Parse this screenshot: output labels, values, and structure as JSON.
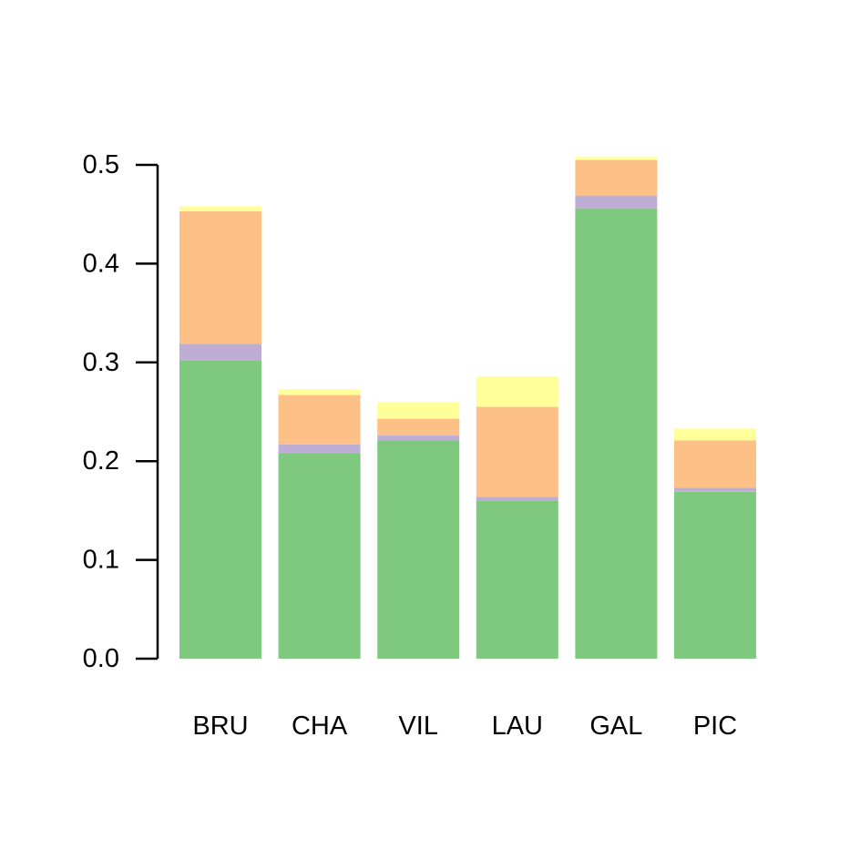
{
  "chart_data": {
    "type": "bar",
    "stacked": true,
    "categories": [
      "BRU",
      "CHA",
      "VIL",
      "LAU",
      "GAL",
      "PIC"
    ],
    "series": [
      {
        "color": "#7FC97F",
        "values": [
          0.302,
          0.208,
          0.221,
          0.16,
          0.456,
          0.169
        ]
      },
      {
        "color": "#BEAED4",
        "values": [
          0.017,
          0.009,
          0.005,
          0.004,
          0.013,
          0.004
        ]
      },
      {
        "color": "#FDC086",
        "values": [
          0.134,
          0.05,
          0.017,
          0.091,
          0.036,
          0.048
        ]
      },
      {
        "color": "#FFFF99",
        "values": [
          0.005,
          0.006,
          0.017,
          0.031,
          0.003,
          0.012
        ]
      }
    ],
    "yticks": [
      "0.0",
      "0.1",
      "0.2",
      "0.3",
      "0.4",
      "0.5"
    ],
    "ylim": [
      0,
      0.5
    ],
    "title": "",
    "xlabel": "",
    "ylabel": "",
    "grid": false,
    "legend": "none"
  }
}
